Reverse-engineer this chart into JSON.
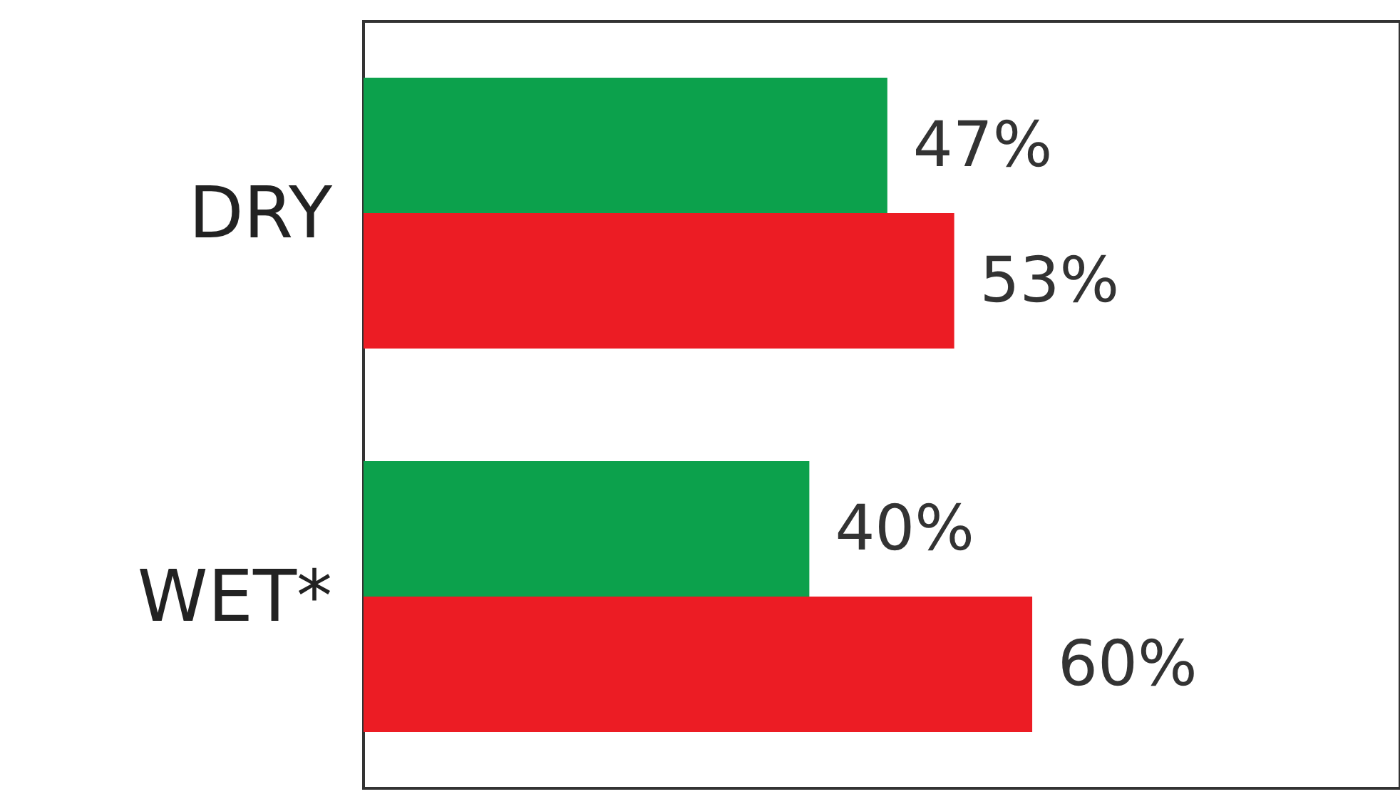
{
  "chart_data": {
    "type": "bar",
    "orientation": "horizontal",
    "categories": [
      "DRY",
      "WET*"
    ],
    "series": [
      {
        "color": "#0ca14c",
        "values": [
          47,
          40
        ],
        "value_labels": [
          "47%",
          "40%"
        ]
      },
      {
        "color": "#ec1c24",
        "values": [
          53,
          60
        ],
        "value_labels": [
          "53%",
          "60%"
        ]
      }
    ],
    "grid": false
  }
}
